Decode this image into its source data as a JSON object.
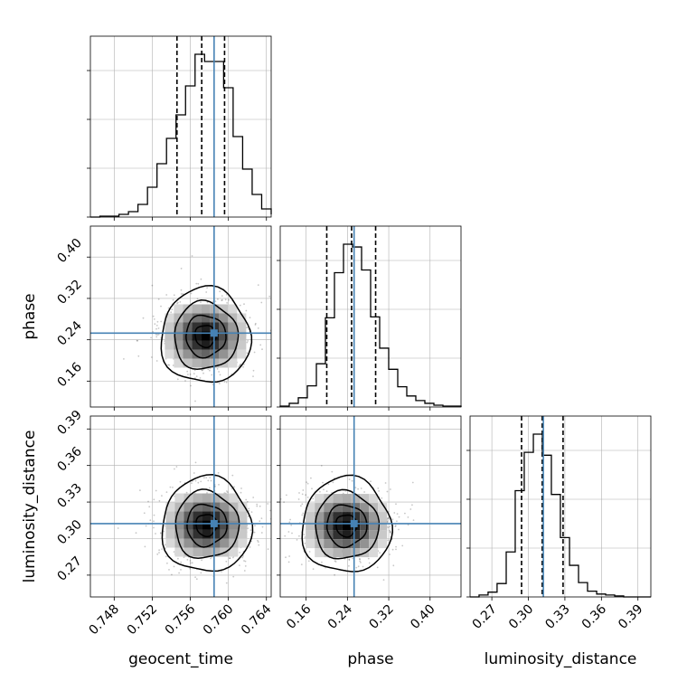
{
  "chart_data": {
    "type": "corner",
    "parameters": [
      "geocent_time",
      "phase",
      "luminosity_distance"
    ],
    "axis_labels": {
      "x": [
        "geocent_time",
        "phase",
        "luminosity_distance"
      ],
      "y": [
        "phase",
        "luminosity_distance"
      ]
    },
    "ranges": {
      "geocent_time": [
        0.7455,
        0.7645
      ],
      "phase": [
        0.1099,
        0.4599
      ],
      "luminosity_distance": [
        0.2521,
        0.4006
      ]
    },
    "ticks": {
      "geocent_time": [
        "0.748",
        "0.752",
        "0.756",
        "0.760",
        "0.764"
      ],
      "phase": [
        "0.16",
        "0.24",
        "0.32",
        "0.40"
      ],
      "luminosity_distance": [
        "0.27",
        "0.30",
        "0.33",
        "0.36",
        "0.39"
      ]
    },
    "truths": {
      "geocent_time": 0.7585,
      "phase": 0.2529,
      "luminosity_distance": 0.3123
    },
    "quantiles": {
      "geocent_time": [
        0.7546,
        0.7572,
        0.7596
      ],
      "phase": [
        0.2,
        0.2481,
        0.2946
      ],
      "luminosity_distance": [
        0.2944,
        0.3114,
        0.3285
      ]
    },
    "histograms": {
      "geocent_time": {
        "bins": [
          0.7455,
          0.7465,
          0.7475,
          0.7485,
          0.7495,
          0.7505,
          0.7515,
          0.7525,
          0.7535,
          0.7545,
          0.7555,
          0.7565,
          0.7575,
          0.7585,
          0.7595,
          0.7605,
          0.7615,
          0.7625,
          0.7635,
          0.7645
        ],
        "counts": [
          0,
          1,
          1,
          3,
          6,
          14,
          33,
          59,
          87,
          113,
          145,
          180,
          172,
          172,
          143,
          89,
          53,
          25,
          9,
          3
        ]
      },
      "phase": {
        "bins": [
          0.1099,
          0.1274,
          0.1449,
          0.1624,
          0.1799,
          0.1974,
          0.2149,
          0.2324,
          0.2499,
          0.2674,
          0.2849,
          0.3024,
          0.3199,
          0.3374,
          0.3549,
          0.3724,
          0.3899,
          0.4074,
          0.4249,
          0.4424,
          0.4599
        ],
        "counts": [
          1,
          4,
          10,
          23,
          47,
          97,
          146,
          177,
          174,
          149,
          98,
          64,
          41,
          22,
          12,
          7,
          4,
          2,
          1,
          1
        ]
      },
      "luminosity_distance": {
        "bins": [
          0.2521,
          0.2595,
          0.2669,
          0.2743,
          0.2818,
          0.2892,
          0.2966,
          0.3041,
          0.3115,
          0.3189,
          0.3263,
          0.3338,
          0.3412,
          0.3486,
          0.3561,
          0.3635,
          0.3709,
          0.3783,
          0.3858,
          0.3932,
          0.4006
        ],
        "counts": [
          0,
          2,
          5,
          14,
          47,
          111,
          151,
          170,
          148,
          107,
          62,
          33,
          15,
          6,
          3,
          2,
          1,
          0,
          0,
          0
        ]
      }
    },
    "density_centers": [
      {
        "x_param": "geocent_time",
        "y_param": "phase",
        "x": 0.7576,
        "y": 0.2473
      },
      {
        "x_param": "geocent_time",
        "y_param": "luminosity_distance",
        "x": 0.7577,
        "y": 0.3111
      },
      {
        "x_param": "phase",
        "y_param": "luminosity_distance",
        "x": 0.238,
        "y": 0.3107
      }
    ],
    "grid": true,
    "colors": {
      "truth": "#4682b4",
      "hist": "#000000",
      "quantile": "#000000",
      "grid": "#b0b0b0"
    }
  }
}
